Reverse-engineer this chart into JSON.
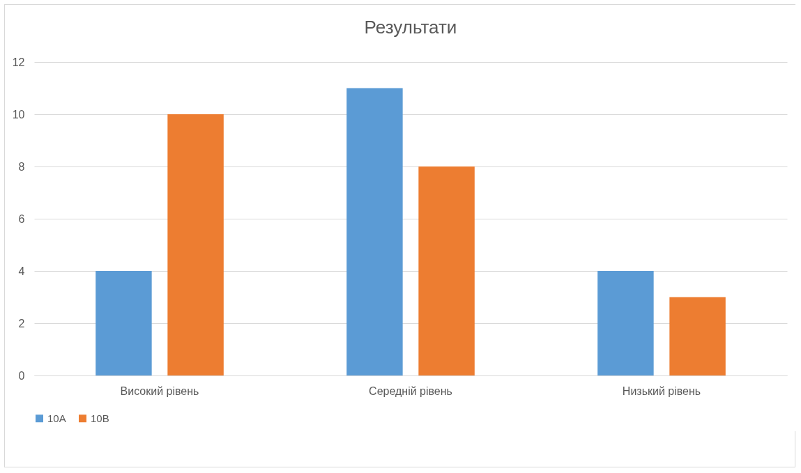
{
  "chart_data": {
    "type": "bar",
    "title": "Результати",
    "categories": [
      "Високий рівень",
      "Середній рівень",
      "Низький рівень"
    ],
    "series": [
      {
        "name": "10А",
        "color": "#5b9bd5",
        "values": [
          4,
          11,
          4
        ]
      },
      {
        "name": "10В",
        "color": "#ed7d31",
        "values": [
          10,
          8,
          3
        ]
      }
    ],
    "ylim": [
      0,
      12
    ],
    "yticks": [
      0,
      2,
      4,
      6,
      8,
      10,
      12
    ],
    "grid": "y",
    "legend": "bottom"
  }
}
